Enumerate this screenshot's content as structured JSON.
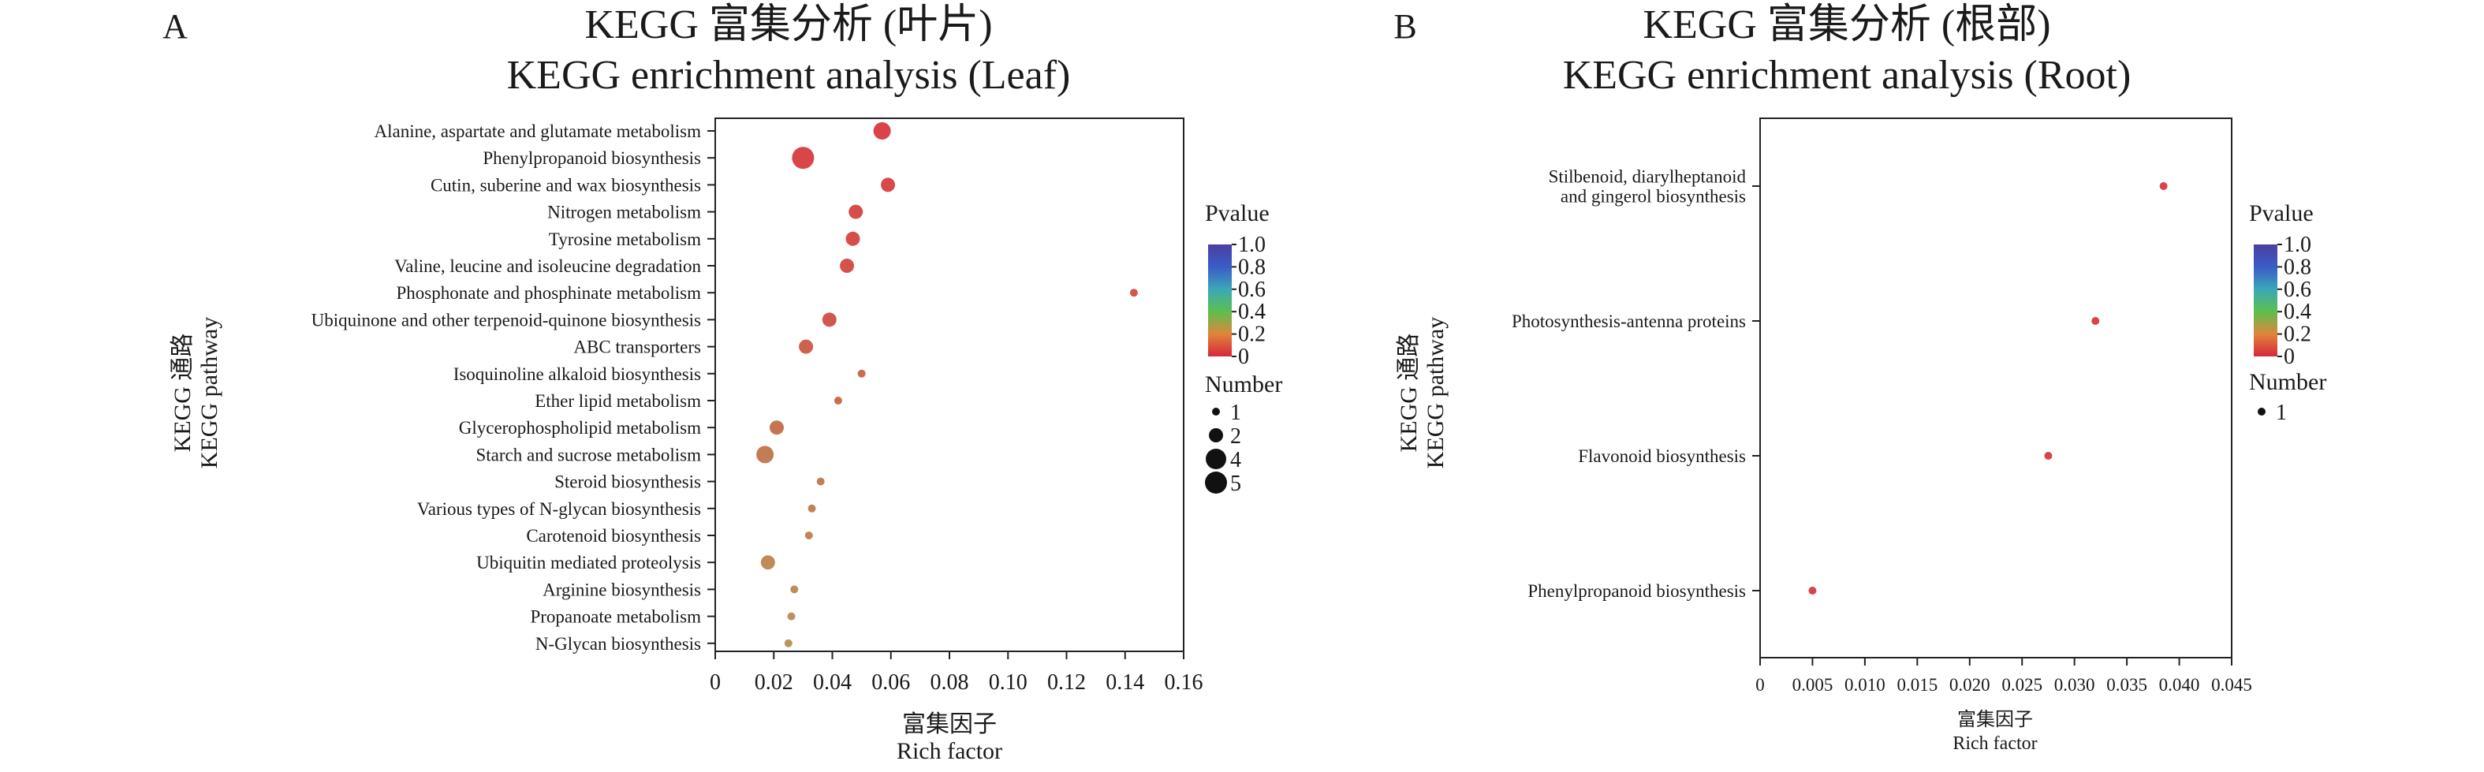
{
  "chart_data": [
    {
      "panel": "A",
      "type": "scatter",
      "title_cn": "KEGG 富集分析 (叶片)",
      "title_en": "KEGG enrichment analysis (Leaf)",
      "ylabel_cn": "KEGG 通路",
      "ylabel_en": "KEGG pathway",
      "xlabel_cn": "富集因子",
      "xlabel_en": "Rich factor",
      "xlim": [
        0,
        0.16
      ],
      "xticks": [
        "0",
        "0.02",
        "0.04",
        "0.06",
        "0.08",
        "0.10",
        "0.12",
        "0.14",
        "0.16"
      ],
      "categories": [
        "Alanine, aspartate and glutamate metabolism",
        "Phenylpropanoid biosynthesis",
        "Cutin, suberine and wax biosynthesis",
        "Nitrogen metabolism",
        "Tyrosine metabolism",
        "Valine, leucine and isoleucine degradation",
        "Phosphonate and phosphinate metabolism",
        "Ubiquinone and other terpenoid-quinone biosynthesis",
        "ABC transporters",
        "Isoquinoline alkaloid biosynthesis",
        "Ether lipid metabolism",
        "Glycerophospholipid metabolism",
        "Starch and sucrose metabolism",
        "Steroid biosynthesis",
        "Various types of N-glycan biosynthesis",
        "Carotenoid biosynthesis",
        "Ubiquitin mediated proteolysis",
        "Arginine biosynthesis",
        "Propanoate metabolism",
        "N-Glycan biosynthesis"
      ],
      "points": [
        {
          "x": 0.057,
          "number": 3,
          "pvalue": 0.02
        },
        {
          "x": 0.03,
          "number": 5,
          "pvalue": 0.03
        },
        {
          "x": 0.059,
          "number": 2,
          "pvalue": 0.04
        },
        {
          "x": 0.048,
          "number": 2,
          "pvalue": 0.05
        },
        {
          "x": 0.047,
          "number": 2,
          "pvalue": 0.05
        },
        {
          "x": 0.045,
          "number": 2,
          "pvalue": 0.06
        },
        {
          "x": 0.143,
          "number": 1,
          "pvalue": 0.07
        },
        {
          "x": 0.039,
          "number": 2,
          "pvalue": 0.08
        },
        {
          "x": 0.031,
          "number": 2,
          "pvalue": 0.1
        },
        {
          "x": 0.05,
          "number": 1,
          "pvalue": 0.12
        },
        {
          "x": 0.042,
          "number": 1,
          "pvalue": 0.13
        },
        {
          "x": 0.021,
          "number": 2,
          "pvalue": 0.15
        },
        {
          "x": 0.017,
          "number": 3,
          "pvalue": 0.17
        },
        {
          "x": 0.036,
          "number": 1,
          "pvalue": 0.18
        },
        {
          "x": 0.033,
          "number": 1,
          "pvalue": 0.19
        },
        {
          "x": 0.032,
          "number": 1,
          "pvalue": 0.2
        },
        {
          "x": 0.018,
          "number": 2,
          "pvalue": 0.21
        },
        {
          "x": 0.027,
          "number": 1,
          "pvalue": 0.22
        },
        {
          "x": 0.026,
          "number": 1,
          "pvalue": 0.23
        },
        {
          "x": 0.025,
          "number": 1,
          "pvalue": 0.24
        }
      ],
      "legend_pvalue_title": "Pvalue",
      "legend_pvalue_ticks": [
        "1.0",
        "0.8",
        "0.6",
        "0.4",
        "0.2",
        "0"
      ],
      "legend_number_title": "Number",
      "legend_number_values": [
        "1",
        "2",
        "4",
        "5"
      ],
      "grid": false
    },
    {
      "panel": "B",
      "type": "scatter",
      "title_cn": "KEGG 富集分析 (根部)",
      "title_en": "KEGG enrichment analysis (Root)",
      "ylabel_cn": "KEGG 通路",
      "ylabel_en": "KEGG pathway",
      "xlabel_cn": "富集因子",
      "xlabel_en": "Rich factor",
      "xlim": [
        0,
        0.045
      ],
      "xticks": [
        "0",
        "0.005",
        "0.010",
        "0.015",
        "0.020",
        "0.025",
        "0.030",
        "0.035",
        "0.040",
        "0.045"
      ],
      "categories": [
        "Stilbenoid, diarylheptanoid\nand gingerol biosynthesis",
        "Photosynthesis-antenna proteins",
        "Flavonoid biosynthesis",
        "Phenylpropanoid biosynthesis"
      ],
      "points": [
        {
          "x": 0.0385,
          "number": 1,
          "pvalue": 0.02
        },
        {
          "x": 0.032,
          "number": 1,
          "pvalue": 0.02
        },
        {
          "x": 0.0275,
          "number": 1,
          "pvalue": 0.02
        },
        {
          "x": 0.005,
          "number": 1,
          "pvalue": 0.02
        }
      ],
      "legend_pvalue_title": "Pvalue",
      "legend_pvalue_ticks": [
        "1.0",
        "0.8",
        "0.6",
        "0.4",
        "0.2",
        "0"
      ],
      "legend_number_title": "Number",
      "legend_number_values": [
        "1"
      ],
      "grid": false
    }
  ],
  "colors": {
    "low_pvalue": "#dc3b48",
    "mid_pvalue": "#b89a5a",
    "gradient": [
      "#d7263d",
      "#e0853a",
      "#5cbf4e",
      "#3aa8b8",
      "#3a5cc8",
      "#4b3fa0"
    ]
  }
}
